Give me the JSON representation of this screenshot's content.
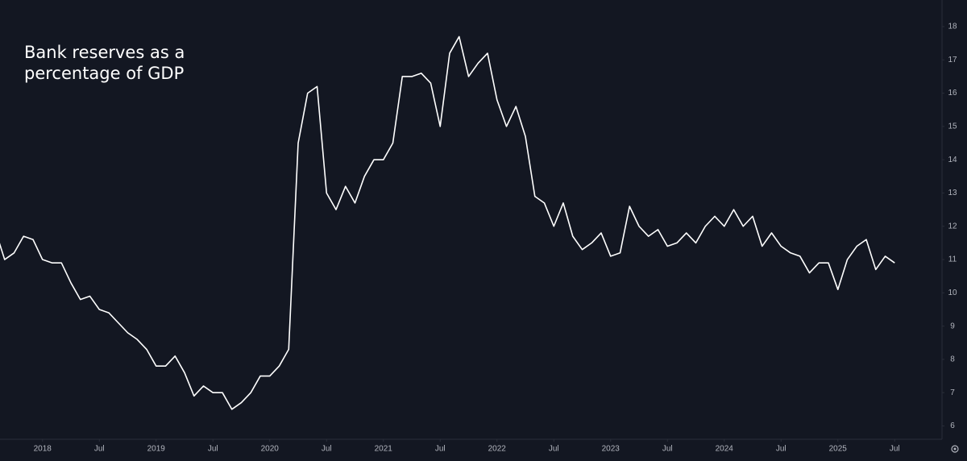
{
  "chart_data": {
    "type": "line",
    "title": "Bank reserves as a percentage of GDP",
    "color": "#ffffff",
    "x": [
      "2017-08",
      "2017-09",
      "2017-10",
      "2017-11",
      "2017-12",
      "2018-01",
      "2018-02",
      "2018-03",
      "2018-04",
      "2018-05",
      "2018-06",
      "2018-07",
      "2018-08",
      "2018-09",
      "2018-10",
      "2018-11",
      "2018-12",
      "2019-01",
      "2019-02",
      "2019-03",
      "2019-04",
      "2019-05",
      "2019-06",
      "2019-07",
      "2019-08",
      "2019-09",
      "2019-10",
      "2019-11",
      "2019-12",
      "2020-01",
      "2020-02",
      "2020-03",
      "2020-04",
      "2020-05",
      "2020-06",
      "2020-07",
      "2020-08",
      "2020-09",
      "2020-10",
      "2020-11",
      "2020-12",
      "2021-01",
      "2021-02",
      "2021-03",
      "2021-04",
      "2021-05",
      "2021-06",
      "2021-07",
      "2021-08",
      "2021-09",
      "2021-10",
      "2021-11",
      "2021-12",
      "2022-01",
      "2022-02",
      "2022-03",
      "2022-04",
      "2022-05",
      "2022-06",
      "2022-07",
      "2022-08",
      "2022-09",
      "2022-10",
      "2022-11",
      "2022-12",
      "2023-01",
      "2023-02",
      "2023-03",
      "2023-04",
      "2023-05",
      "2023-06",
      "2023-07",
      "2023-08",
      "2023-09",
      "2023-10",
      "2023-11",
      "2023-12",
      "2024-01",
      "2024-02",
      "2024-03",
      "2024-04",
      "2024-05",
      "2024-06",
      "2024-07",
      "2024-08",
      "2024-09",
      "2024-10",
      "2024-11",
      "2024-12",
      "2025-01",
      "2025-02",
      "2025-03",
      "2025-04",
      "2025-05",
      "2025-06",
      "2025-07"
    ],
    "values": [
      11.9,
      11.0,
      11.2,
      11.7,
      11.6,
      11.0,
      10.9,
      10.9,
      10.3,
      9.8,
      9.9,
      9.5,
      9.4,
      9.1,
      8.8,
      8.6,
      8.3,
      7.8,
      7.8,
      8.1,
      7.6,
      6.9,
      7.2,
      7.0,
      7.0,
      6.5,
      6.7,
      7.0,
      7.5,
      7.5,
      7.8,
      8.3,
      14.5,
      16.0,
      16.2,
      13.0,
      12.5,
      13.2,
      12.7,
      13.5,
      14.0,
      14.0,
      14.5,
      16.5,
      16.5,
      16.6,
      16.3,
      15.0,
      17.2,
      17.7,
      16.5,
      16.9,
      17.2,
      15.8,
      15.0,
      15.6,
      14.7,
      12.9,
      12.7,
      12.0,
      12.7,
      11.7,
      11.3,
      11.5,
      11.8,
      11.1,
      11.2,
      12.6,
      12.0,
      11.7,
      11.9,
      11.4,
      11.5,
      11.8,
      11.5,
      12.0,
      12.3,
      12.0,
      12.5,
      12.0,
      12.3,
      11.4,
      11.8,
      11.4,
      11.2,
      11.1,
      10.6,
      10.9,
      10.9,
      10.1,
      11.0,
      11.4,
      11.6,
      10.7,
      11.1,
      10.9
    ],
    "xlim": [
      "2017-08",
      "2025-12"
    ],
    "xticks": [
      {
        "value": "2018-01",
        "label": "2018"
      },
      {
        "value": "2018-07",
        "label": "Jul"
      },
      {
        "value": "2019-01",
        "label": "2019"
      },
      {
        "value": "2019-07",
        "label": "Jul"
      },
      {
        "value": "2020-01",
        "label": "2020"
      },
      {
        "value": "2020-07",
        "label": "Jul"
      },
      {
        "value": "2021-01",
        "label": "2021"
      },
      {
        "value": "2021-07",
        "label": "Jul"
      },
      {
        "value": "2022-01",
        "label": "2022"
      },
      {
        "value": "2022-07",
        "label": "Jul"
      },
      {
        "value": "2023-01",
        "label": "2023"
      },
      {
        "value": "2023-07",
        "label": "Jul"
      },
      {
        "value": "2024-01",
        "label": "2024"
      },
      {
        "value": "2024-07",
        "label": "Jul"
      },
      {
        "value": "2025-01",
        "label": "2025"
      },
      {
        "value": "2025-07",
        "label": "Jul"
      }
    ],
    "ylim": [
      5.6,
      18.8
    ],
    "yticks": [
      6,
      7,
      8,
      9,
      10,
      11,
      12,
      13,
      14,
      15,
      16,
      17,
      18
    ],
    "grid": false
  }
}
